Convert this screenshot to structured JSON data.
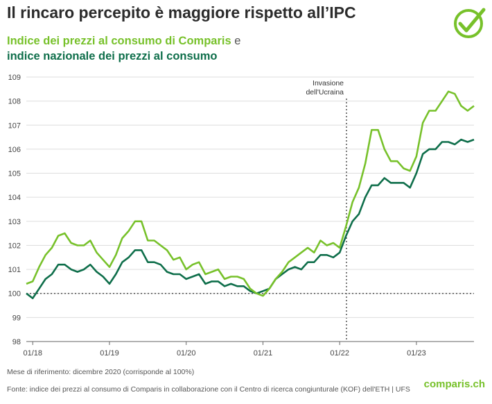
{
  "chart_data": {
    "type": "line",
    "title": "Il rincaro percepito è maggiore rispetto all’IPC",
    "subtitle_connector": "e",
    "annotation": [
      "Invasione",
      "dell'Ucraina"
    ],
    "reference_line": 100,
    "categories": [
      null,
      "01/18",
      null,
      null,
      null,
      null,
      null,
      null,
      null,
      null,
      null,
      null,
      null,
      "01/19",
      null,
      null,
      null,
      null,
      null,
      null,
      null,
      null,
      null,
      null,
      null,
      "01/20",
      null,
      null,
      null,
      null,
      null,
      null,
      null,
      null,
      null,
      null,
      null,
      "01/21",
      null,
      null,
      null,
      null,
      null,
      null,
      null,
      null,
      null,
      null,
      null,
      "01/22",
      null,
      null,
      null,
      null,
      null,
      null,
      null,
      null,
      null,
      null,
      null,
      "01/23",
      null,
      null,
      null,
      null,
      null,
      null,
      null,
      null,
      null
    ],
    "series": [
      {
        "name": "Indice dei prezzi al consumo di Comparis",
        "color": "#77c12a",
        "values": [
          100.4,
          100.5,
          101.1,
          101.6,
          101.9,
          102.4,
          102.5,
          102.1,
          102.0,
          102.0,
          102.2,
          101.7,
          101.4,
          101.1,
          101.6,
          102.3,
          102.6,
          103.0,
          103.0,
          102.2,
          102.2,
          102.0,
          101.8,
          101.4,
          101.5,
          101.0,
          101.2,
          101.3,
          100.8,
          100.9,
          101.0,
          100.6,
          100.7,
          100.7,
          100.6,
          100.2,
          100.0,
          99.9,
          100.2,
          100.6,
          100.9,
          101.3,
          101.5,
          101.7,
          101.9,
          101.7,
          102.2,
          102.0,
          102.1,
          101.9,
          102.8,
          103.8,
          104.4,
          105.4,
          106.8,
          106.8,
          106.0,
          105.5,
          105.5,
          105.2,
          105.1,
          105.7,
          107.1,
          107.6,
          107.6,
          108.0,
          108.4,
          108.3,
          107.8,
          107.6,
          107.8
        ]
      },
      {
        "name": "indice nazionale dei prezzi al consumo",
        "color": "#0e6e4a",
        "values": [
          100.0,
          99.8,
          100.2,
          100.6,
          100.8,
          101.2,
          101.2,
          101.0,
          100.9,
          101.0,
          101.2,
          100.9,
          100.7,
          100.4,
          100.8,
          101.3,
          101.5,
          101.8,
          101.8,
          101.3,
          101.3,
          101.2,
          100.9,
          100.8,
          100.8,
          100.6,
          100.7,
          100.8,
          100.4,
          100.5,
          100.5,
          100.3,
          100.4,
          100.3,
          100.3,
          100.1,
          100.0,
          100.1,
          100.2,
          100.6,
          100.8,
          101.0,
          101.1,
          101.0,
          101.3,
          101.3,
          101.6,
          101.6,
          101.5,
          101.7,
          102.4,
          103.0,
          103.3,
          104.0,
          104.5,
          104.5,
          104.8,
          104.6,
          104.6,
          104.6,
          104.4,
          105.0,
          105.8,
          106.0,
          106.0,
          106.3,
          106.3,
          106.2,
          106.4,
          106.3,
          106.4
        ]
      }
    ],
    "ylim": [
      98,
      109
    ],
    "yticks": [
      98,
      99,
      100,
      101,
      102,
      103,
      104,
      105,
      106,
      107,
      108,
      109
    ],
    "grid": true,
    "footnote": "Mese di riferimento: dicembre 2020 (corrisponde al 100%)",
    "source": "Fonte: indice dei prezzi al consumo di Comparis in collaborazione con il Centro di ricerca congiunturale (KOF) dell'ETH | UFS",
    "logo": "comparis.ch"
  }
}
